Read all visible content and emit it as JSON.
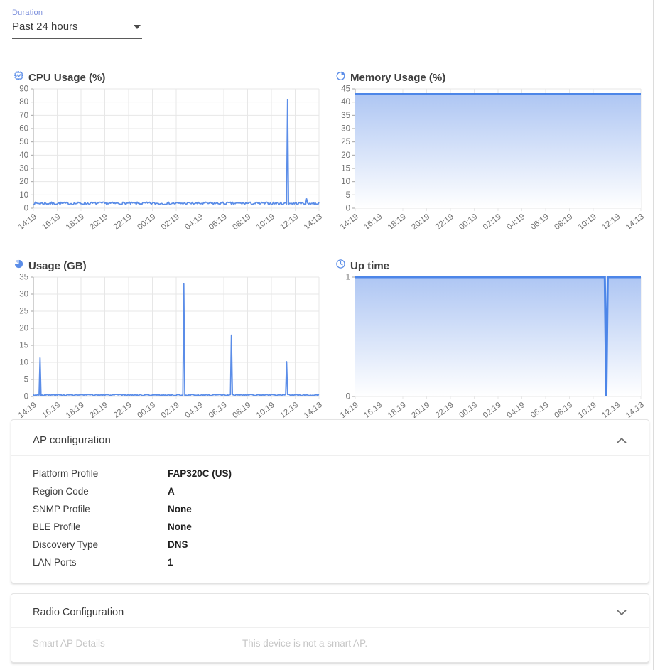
{
  "duration_control": {
    "label": "Duration",
    "value": "Past 24 hours"
  },
  "colors": {
    "accent_blue": "#5b8de8",
    "area_line_blue": "#4d86e8",
    "area_fill_top": "#aec6f3",
    "area_fill_bottom": "#ffffff",
    "grid": "#e7e7e7",
    "axis": "#a3a3a3",
    "tick_label": "#707070"
  },
  "chart_data": {
    "x_ticks": [
      "14:19",
      "16:19",
      "18:19",
      "20:19",
      "22:19",
      "00:19",
      "02:19",
      "04:19",
      "06:19",
      "08:19",
      "10:19",
      "12:19",
      "14:13"
    ],
    "charts": [
      {
        "title": "CPU Usage (%)",
        "icon": "cpu-icon",
        "type": "line",
        "y_max": 90,
        "y_ticks": [
          0,
          10,
          20,
          30,
          40,
          50,
          60,
          70,
          80,
          90
        ],
        "series": {
          "baseline": 2.6,
          "noise_amplitude": 2.0,
          "seed": 7,
          "spikes": [
            {
              "t": 0.889,
              "value": 82
            },
            {
              "t": 0.958,
              "value": 7
            }
          ]
        }
      },
      {
        "title": "Memory Usage (%)",
        "icon": "memory-icon",
        "type": "area",
        "y_max": 45,
        "y_ticks": [
          0,
          5,
          10,
          15,
          20,
          25,
          30,
          35,
          40,
          45
        ],
        "series": {
          "baseline": 43,
          "dips": []
        }
      },
      {
        "title": "Usage (GB)",
        "icon": "disk-usage-icon",
        "type": "line",
        "y_max": 35,
        "y_ticks": [
          0,
          5,
          10,
          15,
          20,
          25,
          30,
          35
        ],
        "series": {
          "baseline": 0.25,
          "noise_amplitude": 0.35,
          "seed": 3,
          "spikes": [
            {
              "t": 0.024,
              "value": 11.3
            },
            {
              "t": 0.528,
              "value": 33
            },
            {
              "t": 0.695,
              "value": 18
            },
            {
              "t": 0.887,
              "value": 10.2
            }
          ]
        }
      },
      {
        "title": "Up time",
        "icon": "uptime-icon",
        "type": "area",
        "y_max": 1,
        "y_ticks": [
          0,
          1
        ],
        "series": {
          "baseline": 1,
          "dips": [
            {
              "t": 0.879,
              "value": 0,
              "width": 0.005
            }
          ]
        }
      }
    ]
  },
  "ap_configuration": {
    "title": "AP configuration",
    "rows": [
      {
        "label": "Platform Profile",
        "value": "FAP320C (US)"
      },
      {
        "label": "Region Code",
        "value": "A"
      },
      {
        "label": "SNMP Profile",
        "value": "None"
      },
      {
        "label": "BLE Profile",
        "value": "None"
      },
      {
        "label": "Discovery Type",
        "value": "DNS"
      },
      {
        "label": "LAN Ports",
        "value": "1"
      }
    ]
  },
  "radio_configuration": {
    "title": "Radio Configuration"
  },
  "smart_ap": {
    "label": "Smart AP Details",
    "message": "This device is not a smart AP."
  }
}
